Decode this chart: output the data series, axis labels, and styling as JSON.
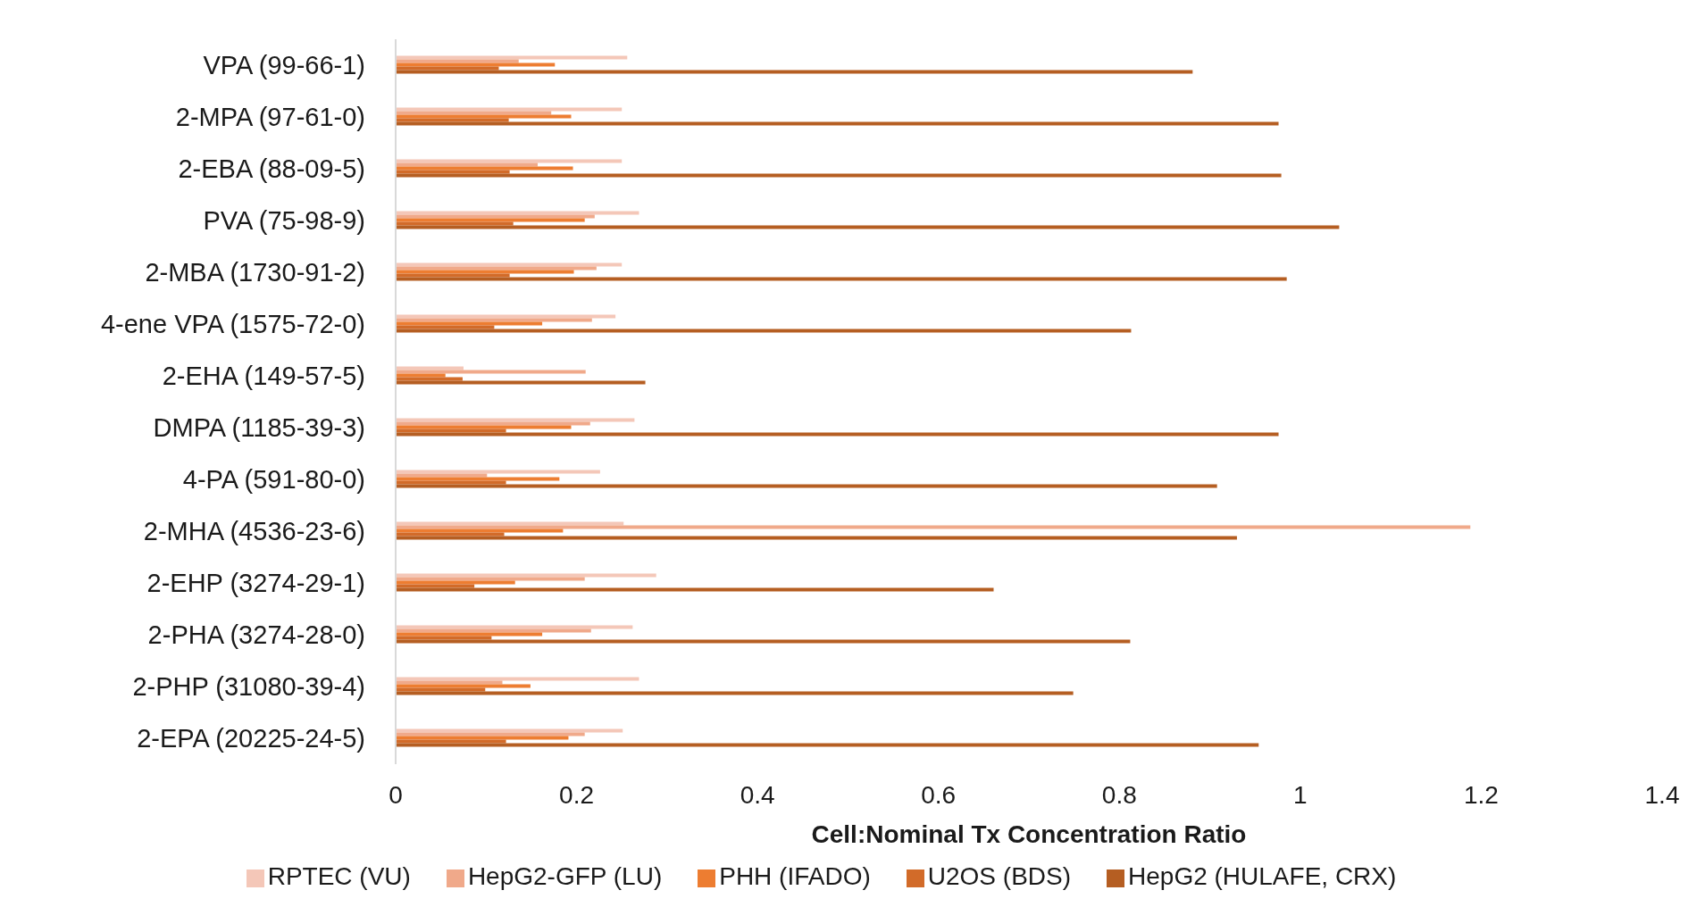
{
  "chart_data": {
    "type": "bar",
    "orientation": "horizontal",
    "xlabel": "Cell:Nominal Tx Concentration Ratio",
    "categories": [
      "VPA (99-66-1)",
      "2-MPA (97-61-0)",
      "2-EBA (88-09-5)",
      "PVA (75-98-9)",
      "2-MBA (1730-91-2)",
      "4-ene VPA (1575-72-0)",
      "2-EHA (149-57-5)",
      "DMPA (1185-39-3)",
      "4-PA (591-80-0)",
      "2-MHA (4536-23-6)",
      "2-EHP (3274-29-1)",
      "2-PHA (3274-28-0)",
      "2-PHP (31080-39-4)",
      "2-EPA (20225-24-5)"
    ],
    "series": [
      {
        "name": "RPTEC (VU)",
        "color": "#f4c7b8",
        "values": [
          0.256,
          0.25,
          0.25,
          0.269,
          0.25,
          0.243,
          0.075,
          0.264,
          0.226,
          0.252,
          0.288,
          0.262,
          0.269,
          0.251
        ]
      },
      {
        "name": "HepG2-GFP (LU)",
        "color": "#f0a98a",
        "values": [
          0.136,
          0.172,
          0.157,
          0.22,
          0.222,
          0.217,
          0.21,
          0.215,
          0.101,
          1.188,
          0.209,
          0.216,
          0.118,
          0.209
        ]
      },
      {
        "name": "PHH (IFADO)",
        "color": "#ed7d31",
        "values": [
          0.176,
          0.194,
          0.196,
          0.209,
          0.197,
          0.162,
          0.055,
          0.194,
          0.181,
          0.185,
          0.132,
          0.162,
          0.149,
          0.191
        ]
      },
      {
        "name": "U2OS (BDS)",
        "color": "#d26b29",
        "values": [
          0.114,
          0.125,
          0.126,
          0.13,
          0.126,
          0.109,
          0.074,
          0.122,
          0.122,
          0.12,
          0.087,
          0.106,
          0.099,
          0.122
        ]
      },
      {
        "name": "HepG2 (HULAFE, CRX)",
        "color": "#b55e22",
        "values": [
          0.881,
          0.976,
          0.979,
          1.043,
          0.985,
          0.813,
          0.276,
          0.976,
          0.908,
          0.93,
          0.661,
          0.812,
          0.749,
          0.954
        ]
      }
    ],
    "xlim": [
      0,
      1.4
    ],
    "xticks": [
      0,
      0.2,
      0.4,
      0.6,
      0.8,
      1,
      1.2,
      1.4
    ],
    "grid": false,
    "legend": "bottom"
  }
}
